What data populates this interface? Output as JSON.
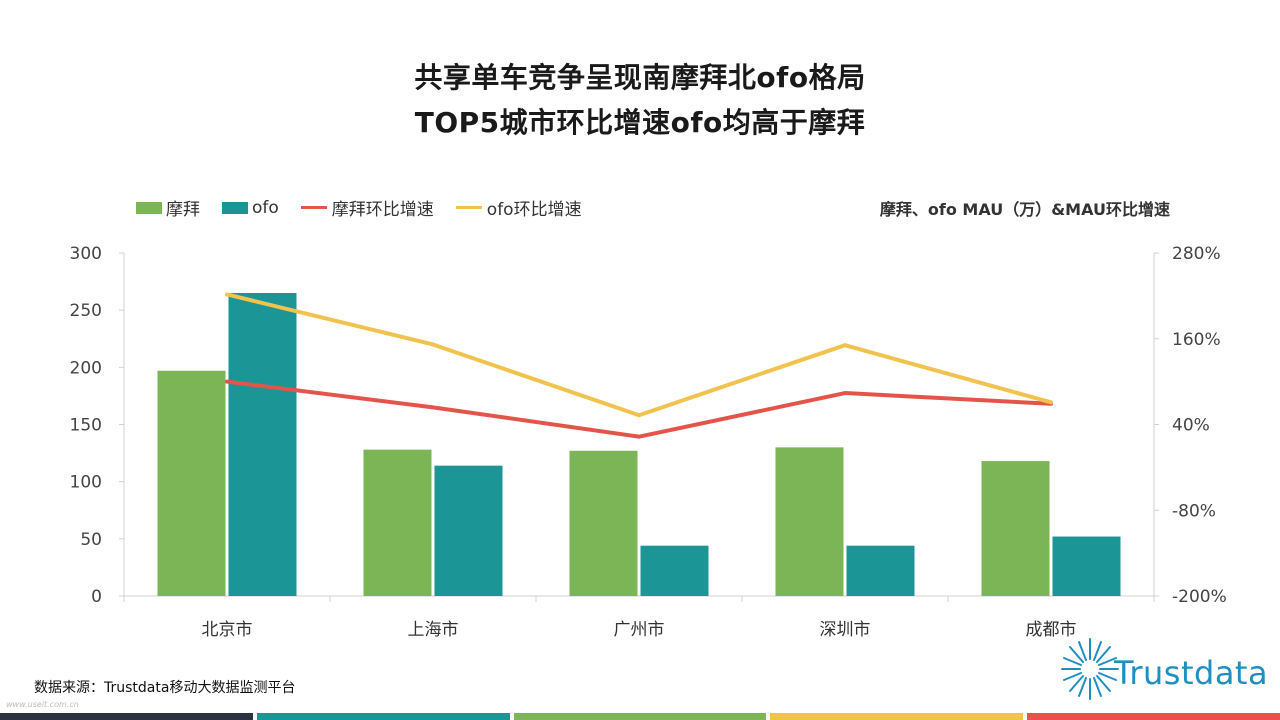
{
  "title_line1": "共享单车竞争呈现南摩拜北ofo格局",
  "title_line2": "TOP5城市环比增速ofo均高于摩拜",
  "subtitle": "摩拜、ofo  MAU（万）&MAU环比增速",
  "legend": [
    "摩拜",
    "ofo",
    "摩拜环比增速",
    "ofo环比增速"
  ],
  "source": "数据来源：Trustdata移动大数据监测平台",
  "watermark": "www.useit.com.cn",
  "logo_text": "Trustdata",
  "colors": {
    "mobike_bar": "#7bb556",
    "ofo_bar": "#1b9596",
    "mobike_line": "#e5544a",
    "ofo_line": "#f2c24e",
    "footer": [
      "#2b3340",
      "#1b9596",
      "#7bb556",
      "#f2c24e",
      "#e5544a"
    ]
  },
  "chart_data": {
    "type": "bar",
    "categories": [
      "北京市",
      "上海市",
      "广州市",
      "深圳市",
      "成都市"
    ],
    "series": [
      {
        "name": "摩拜",
        "type": "bar",
        "axis": "left",
        "values": [
          197,
          128,
          127,
          130,
          118
        ]
      },
      {
        "name": "ofo",
        "type": "bar",
        "axis": "left",
        "values": [
          265,
          114,
          44,
          44,
          52
        ]
      },
      {
        "name": "摩拜环比增速",
        "type": "line",
        "axis": "right",
        "values": [
          100,
          64,
          23,
          84,
          69
        ]
      },
      {
        "name": "ofo环比增速",
        "type": "line",
        "axis": "right",
        "values": [
          222,
          152,
          53,
          151,
          71
        ]
      }
    ],
    "y_left": {
      "min": 0,
      "max": 300,
      "ticks": [
        0,
        50,
        100,
        150,
        200,
        250,
        300
      ]
    },
    "y_right": {
      "min": -200,
      "max": 280,
      "ticks": [
        -200,
        -80,
        40,
        160,
        280
      ],
      "format": "percent"
    },
    "legend_position": "top-left",
    "grid": false
  }
}
